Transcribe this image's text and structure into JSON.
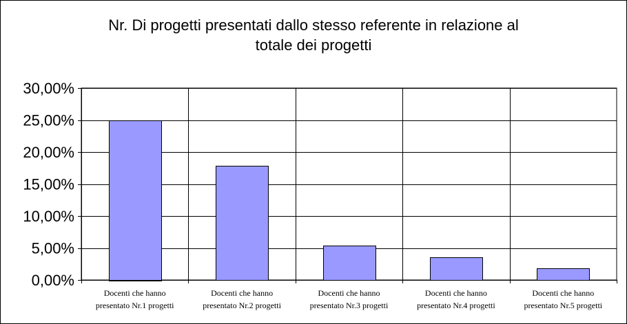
{
  "chart_data": {
    "type": "bar",
    "title_lines": [
      "Nr. Di progetti presentati dallo stesso referente in relazione al",
      "totale dei progetti"
    ],
    "categories": [
      [
        "Docenti che hanno",
        "presentato Nr.1 progetti"
      ],
      [
        "Docenti che hanno",
        "presentato Nr.2 progetti"
      ],
      [
        "Docenti che hanno",
        "presentato Nr.3 progetti"
      ],
      [
        "Docenti che hanno",
        "presentato Nr.4 progetti"
      ],
      [
        "Docenti che hanno",
        "presentato Nr.5 progetti"
      ]
    ],
    "values": [
      25.0,
      17.8,
      5.4,
      3.6,
      1.8
    ],
    "ylim": [
      0,
      30
    ],
    "yticks": [
      0,
      5,
      10,
      15,
      20,
      25,
      30
    ],
    "ytick_labels": [
      "0,00%",
      "5,00%",
      "10,00%",
      "15,00%",
      "20,00%",
      "25,00%",
      "30,00%"
    ],
    "xlabel": "",
    "ylabel": "",
    "grid": true,
    "legend": "none",
    "bar_color": "#9999ff"
  }
}
